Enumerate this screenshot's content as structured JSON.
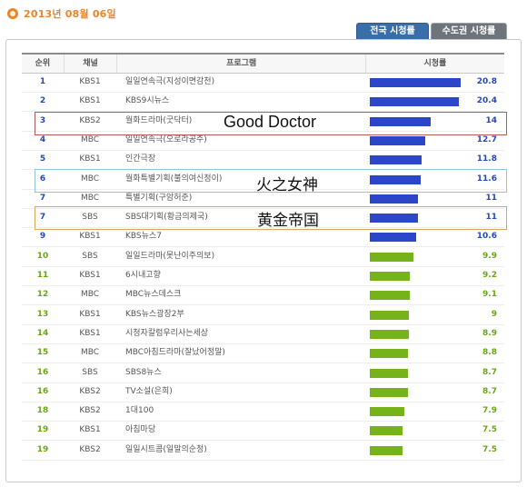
{
  "header": {
    "date": "2013년 08월 06일"
  },
  "tabs": [
    {
      "label": "전국 시청률",
      "active": true
    },
    {
      "label": "수도권 시청률",
      "active": false
    }
  ],
  "columns": {
    "rank": "순위",
    "channel": "채널",
    "program": "프로그램",
    "rating": "시청률"
  },
  "colors": {
    "blue_bar": "#2b46c8",
    "green_bar": "#76b31b",
    "rank_blue": "#2449b8",
    "rank_green": "#6aa518"
  },
  "rows": [
    {
      "rank": "1",
      "channel": "KBS1",
      "program": "일일연속극(지성이면감천)",
      "rating": "20.8",
      "color": "blue"
    },
    {
      "rank": "2",
      "channel": "KBS1",
      "program": "KBS9시뉴스",
      "rating": "20.4",
      "color": "blue"
    },
    {
      "rank": "3",
      "channel": "KBS2",
      "program": "월화드라마(굿닥터)",
      "rating": "14",
      "color": "blue"
    },
    {
      "rank": "4",
      "channel": "MBC",
      "program": "일일연속극(오로라공주)",
      "rating": "12.7",
      "color": "blue"
    },
    {
      "rank": "5",
      "channel": "KBS1",
      "program": "인간극장",
      "rating": "11.8",
      "color": "blue"
    },
    {
      "rank": "6",
      "channel": "MBC",
      "program": "월화특별기획(불의여신정이)",
      "rating": "11.6",
      "color": "blue"
    },
    {
      "rank": "7",
      "channel": "MBC",
      "program": "특별기획(구암허준)",
      "rating": "11",
      "color": "blue"
    },
    {
      "rank": "7",
      "channel": "SBS",
      "program": "SBS대기획(황금의제국)",
      "rating": "11",
      "color": "blue"
    },
    {
      "rank": "9",
      "channel": "KBS1",
      "program": "KBS뉴스7",
      "rating": "10.6",
      "color": "blue"
    },
    {
      "rank": "10",
      "channel": "SBS",
      "program": "일일드라마(못난이주의보)",
      "rating": "9.9",
      "color": "green"
    },
    {
      "rank": "11",
      "channel": "KBS1",
      "program": "6시내고향",
      "rating": "9.2",
      "color": "green"
    },
    {
      "rank": "12",
      "channel": "MBC",
      "program": "MBC뉴스데스크",
      "rating": "9.1",
      "color": "green"
    },
    {
      "rank": "13",
      "channel": "KBS1",
      "program": "KBS뉴스광장2부",
      "rating": "9",
      "color": "green"
    },
    {
      "rank": "14",
      "channel": "KBS1",
      "program": "시청자칼럼우리사는세상",
      "rating": "8.9",
      "color": "green"
    },
    {
      "rank": "15",
      "channel": "MBC",
      "program": "MBC아침드라마(잘났어정말)",
      "rating": "8.8",
      "color": "green"
    },
    {
      "rank": "16",
      "channel": "SBS",
      "program": "SBS8뉴스",
      "rating": "8.7",
      "color": "green"
    },
    {
      "rank": "16",
      "channel": "KBS2",
      "program": "TV소설(은희)",
      "rating": "8.7",
      "color": "green"
    },
    {
      "rank": "18",
      "channel": "KBS2",
      "program": "1대100",
      "rating": "7.9",
      "color": "green"
    },
    {
      "rank": "19",
      "channel": "KBS1",
      "program": "아침마당",
      "rating": "7.5",
      "color": "green"
    },
    {
      "rank": "19",
      "channel": "KBS2",
      "program": "일일시트콤(일말의순정)",
      "rating": "7.5",
      "color": "green"
    }
  ],
  "annotations": [
    {
      "text": "Good Doctor",
      "row_rank": "3"
    },
    {
      "text": "火之女神",
      "row_rank": "6"
    },
    {
      "text": "黄金帝国",
      "row_rank": "7"
    }
  ]
}
